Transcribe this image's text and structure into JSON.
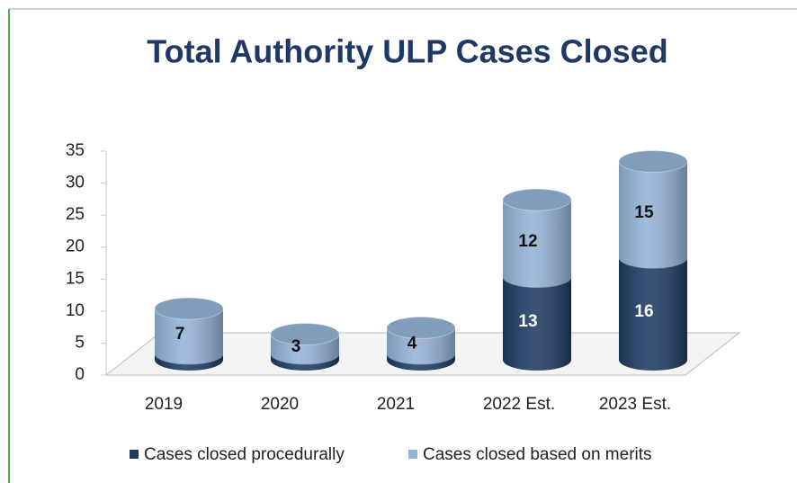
{
  "chart_data": {
    "type": "bar3d_stacked",
    "title": "Total Authority ULP Cases Closed",
    "categories": [
      "2019",
      "2020",
      "2021",
      "2022 Est.",
      "2023 Est."
    ],
    "series": [
      {
        "name": "Cases closed procedurally",
        "color": "#1f3b63",
        "values": [
          1,
          1,
          1,
          13,
          16
        ],
        "value_labels": [
          null,
          null,
          null,
          "13",
          "16"
        ]
      },
      {
        "name": "Cases closed based on merits",
        "color": "#95b3d7",
        "values": [
          7,
          3,
          4,
          12,
          15
        ],
        "value_labels": [
          "7",
          "3",
          "4",
          "12",
          "15"
        ]
      }
    ],
    "ylim": [
      0,
      35
    ],
    "yticks": [
      0,
      5,
      10,
      15,
      20,
      25,
      30,
      35
    ],
    "legend": "bottom"
  }
}
